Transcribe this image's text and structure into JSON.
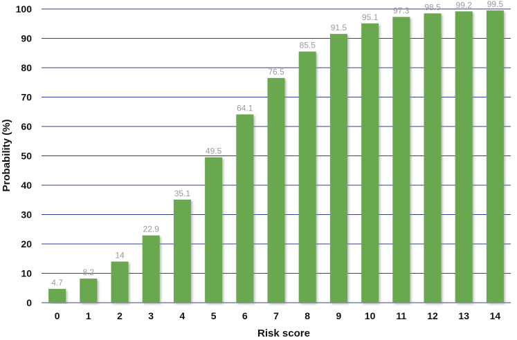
{
  "chart_data": {
    "type": "bar",
    "title": "",
    "xlabel": "Risk score",
    "ylabel": "Probability (%)",
    "categories": [
      "0",
      "1",
      "2",
      "3",
      "4",
      "5",
      "6",
      "7",
      "8",
      "9",
      "10",
      "11",
      "12",
      "13",
      "14"
    ],
    "values": [
      4.7,
      8.2,
      14,
      22.9,
      35.1,
      49.5,
      64.1,
      76.5,
      85.5,
      91.5,
      95.1,
      97.3,
      98.5,
      99.2,
      99.5
    ],
    "data_labels": [
      "4.7",
      "8.2",
      "14",
      "22.9",
      "35.1",
      "49.5",
      "64.1",
      "76.5",
      "85.5",
      "91.5",
      "95.1",
      "97.3",
      "98.5",
      "99.2",
      "99.5"
    ],
    "ylim": [
      0,
      100
    ],
    "yticks": [
      "0",
      "10",
      "20",
      "30",
      "40",
      "50",
      "60",
      "70",
      "80",
      "90",
      "100"
    ],
    "grid": true,
    "legend": "none",
    "colors": {
      "bar": "#6aa84f",
      "bar_shadow": "#9a9a9a",
      "grid": "#2e3f8f",
      "axis": "#2e3f8f",
      "data_label": "#9a9a9a",
      "text": "#111111"
    }
  }
}
